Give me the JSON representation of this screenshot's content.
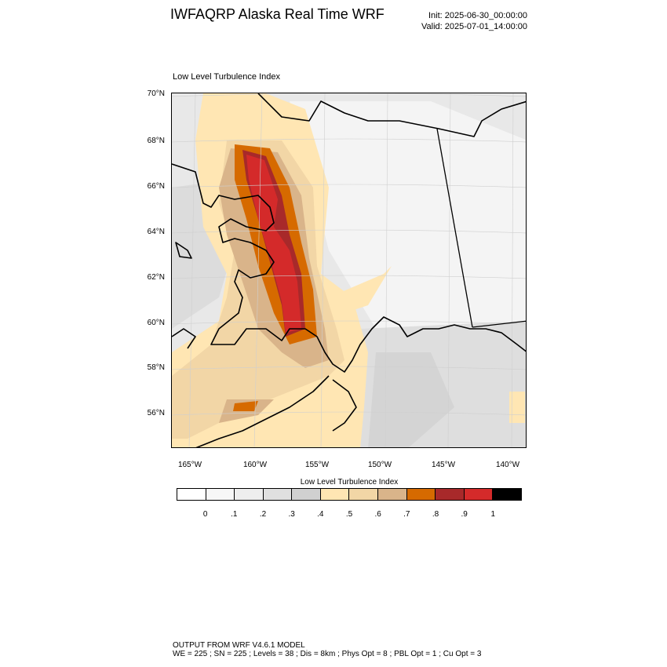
{
  "header": {
    "title": "IWFAQRP Alaska Real Time WRF",
    "init": "Init: 2025-06-30_00:00:00",
    "valid": "Valid: 2025-07-01_14:00:00"
  },
  "map": {
    "panel_title": "Low Level Turbulence Index",
    "lat_labels": [
      "70°N",
      "68°N",
      "66°N",
      "64°N",
      "62°N",
      "60°N",
      "58°N",
      "56°N"
    ],
    "lon_labels": [
      "165°W",
      "160°W",
      "155°W",
      "150°W",
      "145°W",
      "140°W"
    ],
    "field": "Low Level Turbulence Index",
    "max_region": "western Alaska interior, ~60°N–67°N near 155°W–158°W, values 0.9–1"
  },
  "colorbar": {
    "title": "Low Level Turbulence Index",
    "labels": [
      "0",
      ".1",
      ".2",
      ".3",
      ".4",
      ".5",
      ".6",
      ".7",
      ".8",
      ".9",
      "1"
    ],
    "colors": [
      "#ffffff",
      "#f7f7f7",
      "#eeeeee",
      "#e0e0e0",
      "#d0d0d0",
      "#ffe6b3",
      "#f2d6a6",
      "#d9b48a",
      "#d66a00",
      "#a8292a",
      "#d42a2a",
      "#000000"
    ]
  },
  "footer": {
    "line1": "OUTPUT FROM WRF V4.6.1 MODEL",
    "line2": "WE = 225 ; SN = 225 ; Levels = 38 ; Dis = 8km ; Phys Opt = 8 ; PBL Opt = 1 ; Cu Opt = 3"
  }
}
